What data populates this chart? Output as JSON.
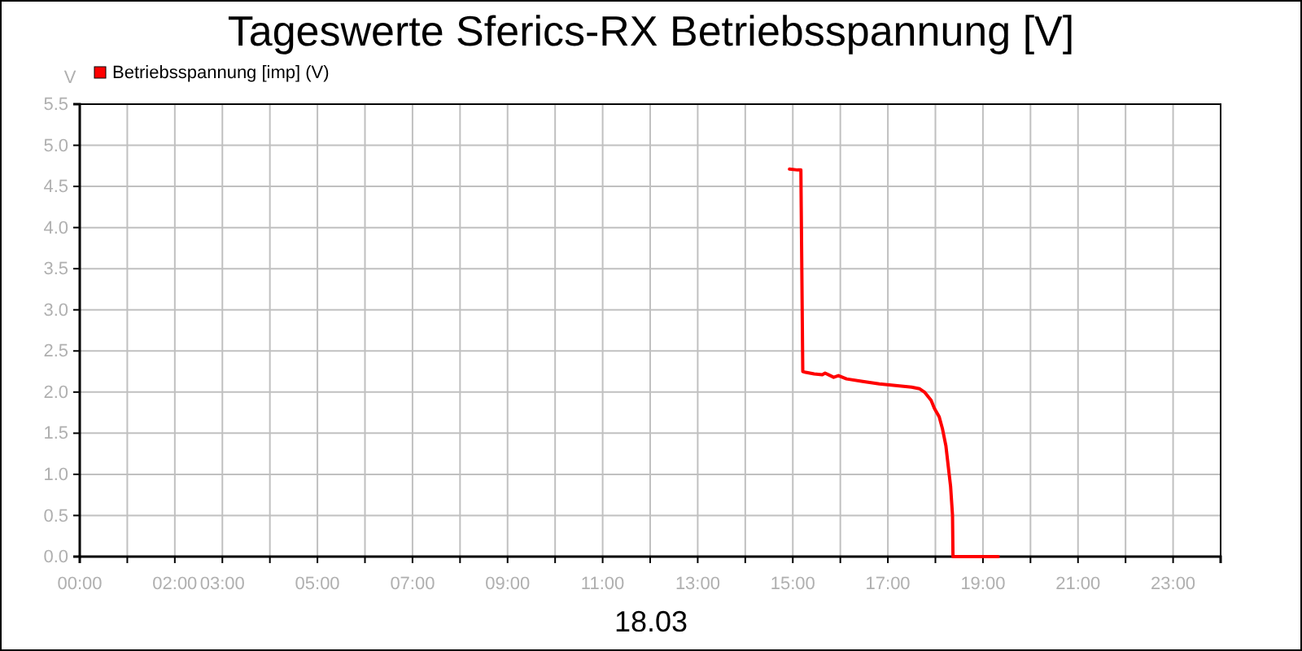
{
  "chart_data": {
    "type": "line",
    "title": "Tageswerte Sferics-RX Betriebsspannung [V]",
    "xlabel": "18.03",
    "ylabel": "V",
    "series": [
      {
        "name": "Betriebsspannung [imp] (V)",
        "color": "#ff0000",
        "x": [
          14.93,
          15.1,
          15.17,
          15.21,
          15.27,
          15.45,
          15.62,
          15.68,
          15.86,
          15.96,
          16.13,
          16.47,
          16.82,
          17.16,
          17.5,
          17.67,
          17.77,
          17.91,
          17.98,
          18.08,
          18.15,
          18.22,
          18.29,
          18.32,
          18.36,
          18.37,
          19.32
        ],
        "values": [
          4.71,
          4.7,
          4.7,
          2.25,
          2.24,
          2.22,
          2.21,
          2.23,
          2.18,
          2.2,
          2.16,
          2.13,
          2.1,
          2.08,
          2.06,
          2.04,
          2.0,
          1.9,
          1.8,
          1.7,
          1.55,
          1.35,
          1.0,
          0.85,
          0.5,
          0,
          0
        ]
      }
    ],
    "xlim": [
      0,
      24
    ],
    "xticks": [
      {
        "value": 0,
        "label": "00:00"
      },
      {
        "value": 1,
        "label": null
      },
      {
        "value": 2,
        "label": "02:00"
      },
      {
        "value": 3,
        "label": "03:00"
      },
      {
        "value": 4,
        "label": null
      },
      {
        "value": 5,
        "label": "05:00"
      },
      {
        "value": 6,
        "label": null
      },
      {
        "value": 7,
        "label": "07:00"
      },
      {
        "value": 8,
        "label": null
      },
      {
        "value": 9,
        "label": "09:00"
      },
      {
        "value": 10,
        "label": null
      },
      {
        "value": 11,
        "label": "11:00"
      },
      {
        "value": 12,
        "label": null
      },
      {
        "value": 13,
        "label": "13:00"
      },
      {
        "value": 14,
        "label": null
      },
      {
        "value": 15,
        "label": "15:00"
      },
      {
        "value": 16,
        "label": null
      },
      {
        "value": 17,
        "label": "17:00"
      },
      {
        "value": 18,
        "label": null
      },
      {
        "value": 19,
        "label": "19:00"
      },
      {
        "value": 20,
        "label": null
      },
      {
        "value": 21,
        "label": "21:00"
      },
      {
        "value": 22,
        "label": null
      },
      {
        "value": 23,
        "label": "23:00"
      },
      {
        "value": 24,
        "label": null
      }
    ],
    "ylim": [
      0,
      5.5
    ],
    "yticks": [
      {
        "value": 0,
        "label": "0.0"
      },
      {
        "value": 0.5,
        "label": "0.5"
      },
      {
        "value": 1,
        "label": "1.0"
      },
      {
        "value": 1.5,
        "label": "1.5"
      },
      {
        "value": 2,
        "label": "2.0"
      },
      {
        "value": 2.5,
        "label": "2.5"
      },
      {
        "value": 3,
        "label": "3.0"
      },
      {
        "value": 3.5,
        "label": "3.5"
      },
      {
        "value": 4,
        "label": "4.0"
      },
      {
        "value": 4.5,
        "label": "4.5"
      },
      {
        "value": 5,
        "label": "5.0"
      },
      {
        "value": 5.5,
        "label": "5.5"
      }
    ],
    "grid": true,
    "legend": "top left",
    "marker": "none",
    "line_style": "solid"
  }
}
